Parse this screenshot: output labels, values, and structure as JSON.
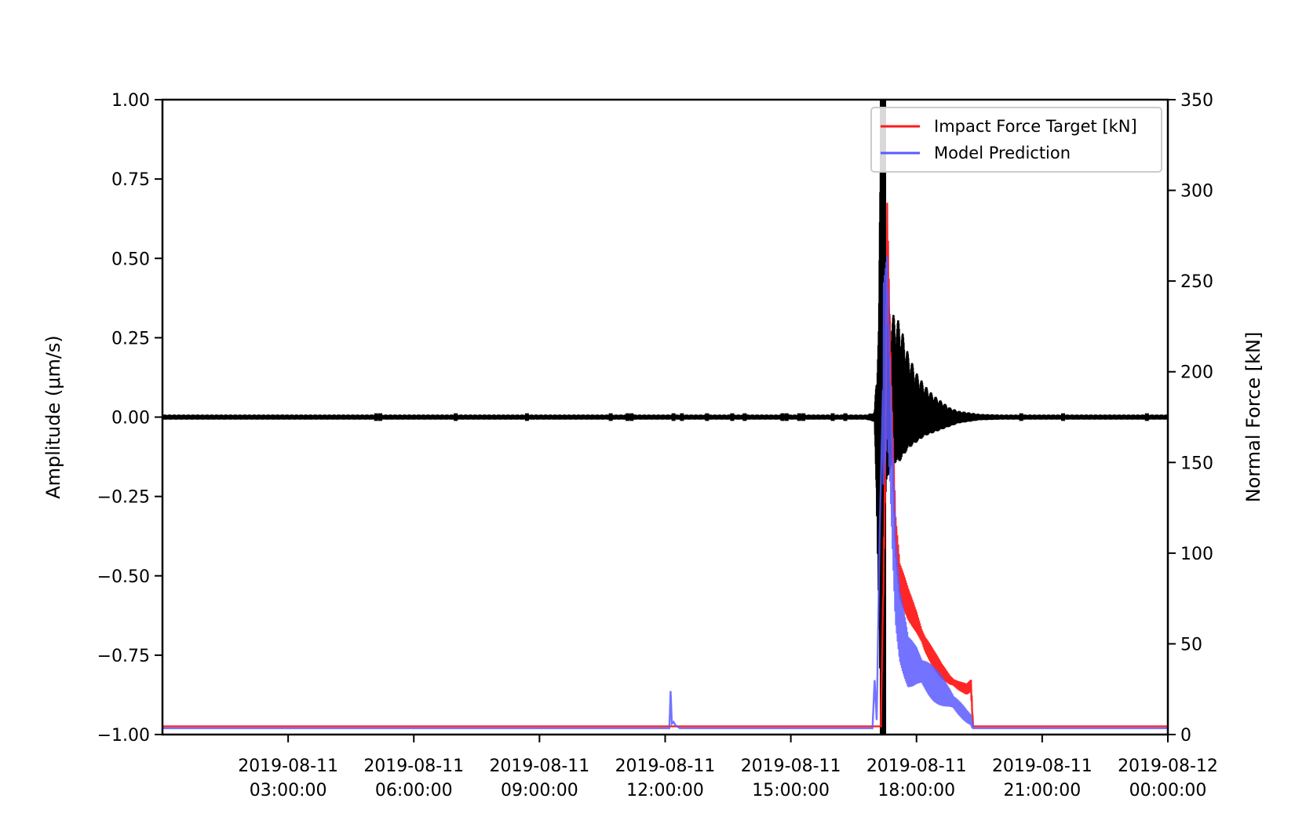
{
  "chart_data": {
    "type": "line",
    "xlabel": "",
    "ylabel_left": "Amplitude (μm/s)",
    "ylabel_right": "Normal Force [kN]",
    "x_range": [
      "2019-08-11 00:00:00",
      "2019-08-12 00:00:00"
    ],
    "ylim_left": [
      -1.0,
      1.0
    ],
    "ylim_right": [
      0,
      350
    ],
    "yticks_left": [
      "1.00",
      "0.75",
      "0.50",
      "0.25",
      "0.00",
      "−0.25",
      "−0.50",
      "−0.75",
      "−1.00"
    ],
    "yticks_left_values": [
      1.0,
      0.75,
      0.5,
      0.25,
      0.0,
      -0.25,
      -0.5,
      -0.75,
      -1.0
    ],
    "yticks_right": [
      "350",
      "300",
      "250",
      "200",
      "150",
      "100",
      "50",
      "0"
    ],
    "yticks_right_values": [
      350,
      300,
      250,
      200,
      150,
      100,
      50,
      0
    ],
    "xticks": [
      {
        "hour": 3,
        "line1": "2019-08-11",
        "line2": "03:00:00"
      },
      {
        "hour": 6,
        "line1": "2019-08-11",
        "line2": "06:00:00"
      },
      {
        "hour": 9,
        "line1": "2019-08-11",
        "line2": "09:00:00"
      },
      {
        "hour": 12,
        "line1": "2019-08-11",
        "line2": "12:00:00"
      },
      {
        "hour": 15,
        "line1": "2019-08-11",
        "line2": "15:00:00"
      },
      {
        "hour": 18,
        "line1": "2019-08-11",
        "line2": "18:00:00"
      },
      {
        "hour": 21,
        "line1": "2019-08-11",
        "line2": "21:00:00"
      },
      {
        "hour": 24,
        "line1": "2019-08-12",
        "line2": "00:00:00"
      }
    ],
    "grid": false,
    "legend_position": "top-right",
    "series": [
      {
        "name": "Impact Force Target [kN]",
        "axis": "right",
        "color": "#ff1a1a",
        "hours": [
          0.0,
          17.0,
          17.15,
          17.25,
          17.3,
          17.4,
          17.5,
          17.6,
          17.8,
          18.0,
          18.2,
          18.4,
          18.6,
          18.8,
          19.0,
          19.2,
          19.3,
          19.35,
          19.4,
          24.0
        ],
        "values": [
          4.5,
          4.5,
          4.5,
          140,
          272,
          180,
          110,
          85,
          72,
          62,
          50,
          42,
          35,
          30,
          27,
          25,
          27,
          4.5,
          4.5,
          4.5
        ]
      },
      {
        "name": "Model Prediction",
        "axis": "right",
        "color": "#5a5aff",
        "hours": [
          0.0,
          12.0,
          12.1,
          12.13,
          12.16,
          12.2,
          12.25,
          12.35,
          16.95,
          17.0,
          17.05,
          17.12,
          17.2,
          17.3,
          17.4,
          17.5,
          17.6,
          17.8,
          18.0,
          18.2,
          18.4,
          18.6,
          18.8,
          19.0,
          19.2,
          19.3,
          19.35,
          19.4,
          24.0
        ],
        "values": [
          3.5,
          3.5,
          3.5,
          24,
          6,
          7,
          5,
          3.5,
          3.5,
          30,
          8,
          110,
          190,
          215,
          150,
          85,
          60,
          40,
          38,
          33,
          28,
          24,
          20,
          15,
          10,
          8,
          3.5,
          3.5,
          3.5
        ]
      },
      {
        "name": "Amplitude",
        "axis": "left",
        "color": "#000000",
        "hours": [
          0.0,
          16.8,
          17.0,
          17.1,
          17.15,
          17.2,
          17.3,
          17.4,
          17.6,
          17.8,
          18.0,
          18.2,
          18.4,
          18.6,
          18.8,
          19.0,
          19.5,
          20.0,
          24.0
        ],
        "envelope_upper": [
          0.008,
          0.008,
          0.015,
          0.3,
          1.0,
          0.55,
          0.35,
          0.33,
          0.3,
          0.2,
          0.14,
          0.1,
          0.07,
          0.05,
          0.03,
          0.02,
          0.01,
          0.008,
          0.008
        ],
        "envelope_lower": [
          -0.008,
          -0.008,
          -0.015,
          -0.6,
          -1.0,
          -0.35,
          -0.2,
          -0.15,
          -0.14,
          -0.1,
          -0.08,
          -0.06,
          -0.05,
          -0.04,
          -0.03,
          -0.02,
          -0.01,
          -0.008,
          -0.008
        ]
      }
    ],
    "small_spikes_hours": [
      13.6,
      13.9,
      16.0,
      16.3,
      14.8,
      14.9,
      15.2,
      15.3,
      10.7,
      11.1,
      11.2,
      12.2,
      7.0,
      8.7,
      5.1,
      5.2,
      20.5,
      21.5,
      23.5,
      13.0,
      12.4
    ]
  }
}
